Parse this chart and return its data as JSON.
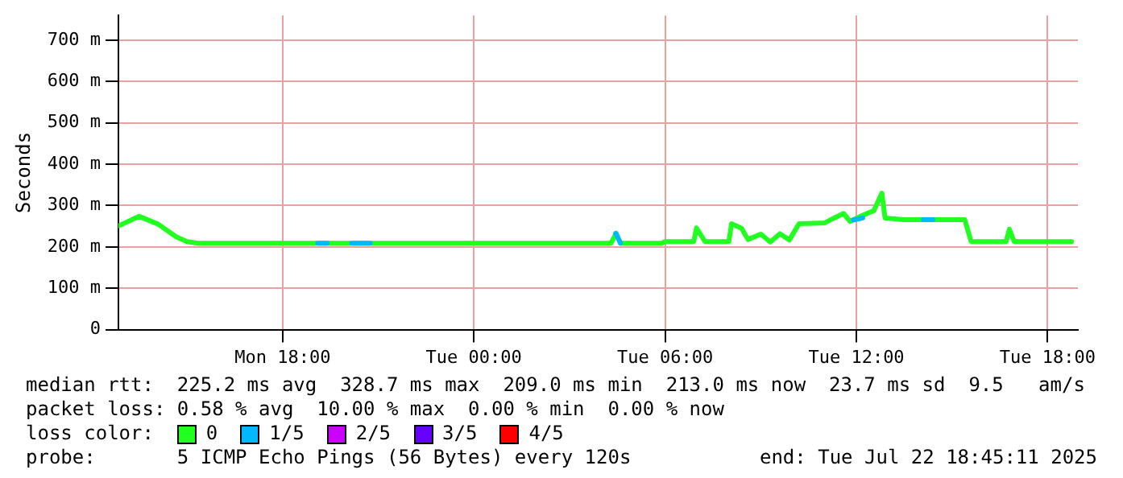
{
  "chart_data": {
    "type": "line",
    "ylabel": "Seconds",
    "legend_title": "loss color:",
    "legend": "bottom",
    "grid": true,
    "marker": "none",
    "line_style": "solid",
    "xlim": [
      "2025-07-21T12:51",
      "2025-07-22T18:57"
    ],
    "ylim": [
      0,
      760
    ],
    "xticks": [
      {
        "value": "2025-07-21T18:00",
        "label": "Mon 18:00"
      },
      {
        "value": "2025-07-22T00:00",
        "label": "Tue 00:00"
      },
      {
        "value": "2025-07-22T06:00",
        "label": "Tue 06:00"
      },
      {
        "value": "2025-07-22T12:00",
        "label": "Tue 12:00"
      },
      {
        "value": "2025-07-22T18:00",
        "label": "Tue 18:00"
      }
    ],
    "yticks": [
      0,
      {
        "value": 100,
        "label": "100 m"
      },
      {
        "value": 200,
        "label": "200 m"
      },
      {
        "value": 300,
        "label": "300 m"
      },
      {
        "value": 400,
        "label": "400 m"
      },
      {
        "value": 500,
        "label": "500 m"
      },
      {
        "value": 600,
        "label": "600 m"
      },
      {
        "value": 700,
        "label": "700 m"
      }
    ],
    "series": [
      {
        "name": "0",
        "color": "#20ff20",
        "x": [
          "2025-07-21T12:51",
          "2025-07-21T13:30",
          "2025-07-21T14:06",
          "2025-07-21T14:39",
          "2025-07-21T15:00",
          "2025-07-21T15:21",
          "2025-07-22T04:18",
          "2025-07-22T04:28",
          "2025-07-22T04:36",
          "2025-07-22T05:54",
          "2025-07-22T06:00",
          "2025-07-22T06:54",
          "2025-07-22T06:59",
          "2025-07-22T07:15",
          "2025-07-22T08:00",
          "2025-07-22T08:05",
          "2025-07-22T08:24",
          "2025-07-22T08:36",
          "2025-07-22T09:00",
          "2025-07-22T09:18",
          "2025-07-22T09:36",
          "2025-07-22T09:54",
          "2025-07-22T10:12",
          "2025-07-22T11:00",
          "2025-07-22T11:15",
          "2025-07-22T11:36",
          "2025-07-22T11:48",
          "2025-07-22T12:06",
          "2025-07-22T12:33",
          "2025-07-22T12:48",
          "2025-07-22T12:54",
          "2025-07-22T13:30",
          "2025-07-22T15:24",
          "2025-07-22T15:36",
          "2025-07-22T16:42",
          "2025-07-22T16:48",
          "2025-07-22T16:57",
          "2025-07-22T18:45"
        ],
        "values": [
          251,
          274,
          255,
          225,
          213,
          209,
          209,
          233,
          209,
          209,
          213,
          213,
          246,
          213,
          213,
          256,
          245,
          218,
          231,
          212,
          232,
          217,
          256,
          258,
          268,
          281,
          262,
          273,
          288,
          330,
          270,
          266,
          266,
          213,
          213,
          243,
          213,
          213
        ]
      },
      {
        "name": "1/5",
        "color": "#00b8ff",
        "x": [
          "2025-07-21T19:06",
          "2025-07-21T19:24",
          "2025-07-21T19:50",
          "2025-07-21T20:10",
          "2025-07-21T20:45",
          "2025-07-22T02:00",
          "2025-07-22T04:27",
          "2025-07-22T04:36",
          "2025-07-22T08:00",
          "2025-07-22T11:54",
          "2025-07-22T12:12",
          "2025-07-22T13:00",
          "2025-07-22T14:06",
          "2025-07-22T14:24"
        ],
        "values": [
          209,
          209,
          null,
          209,
          209,
          null,
          233,
          209,
          null,
          265,
          270,
          null,
          266,
          266
        ]
      },
      {
        "name": "2/5",
        "color": "#cc00ff"
      },
      {
        "name": "3/5",
        "color": "#6600ff"
      },
      {
        "name": "4/5",
        "color": "#ff0000"
      }
    ],
    "annotations": [
      "median rtt:  225.2 ms avg  328.7 ms max  209.0 ms min  213.0 ms now  23.7 ms sd  9.5   am/s",
      "packet loss: 0.58 % avg  10.00 % max  0.00 % min  0.00 % now",
      "probe:       5 ICMP Echo Pings (56 Bytes) every 120s",
      "end: Tue Jul 22 18:45:11 2025"
    ]
  }
}
